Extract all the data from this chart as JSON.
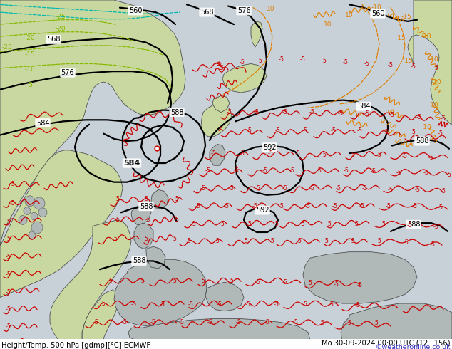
{
  "title_left": "Height/Temp. 500 hPa [gdmp][°C] ECMWF",
  "title_right": "Mo 30-09-2024 00:00 UTC (12+156)",
  "credit": "©weatheronline.co.uk",
  "bg_color": "#c8d0d8",
  "land_green_light": "#c8d8a0",
  "land_green_med": "#b8cc90",
  "land_grey": "#b0b8b8",
  "coast_color": "#505050",
  "geo_color": "#000000",
  "temp_red": "#cc0000",
  "temp_orange": "#e08000",
  "temp_yel_green": "#88b800",
  "temp_cyan": "#00c0b0",
  "fig_w": 6.34,
  "fig_h": 4.9,
  "dpi": 100
}
